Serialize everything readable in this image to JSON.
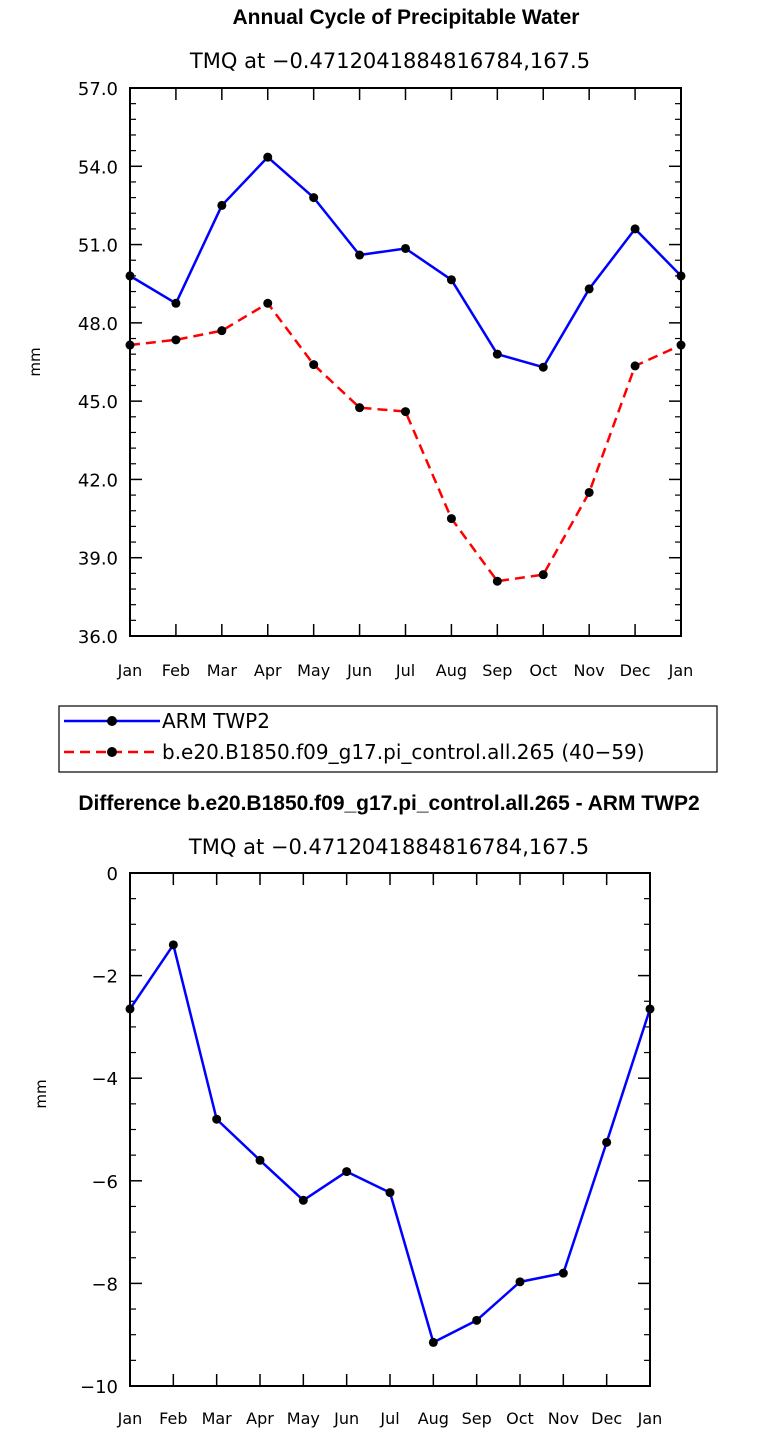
{
  "chart_data": [
    {
      "type": "line",
      "title": "Annual Cycle of Precipitable Water",
      "subtitle": "TMQ at −0.4712041884816784,167.5",
      "xlabel": "",
      "ylabel": "mm",
      "categories": [
        "Jan",
        "Feb",
        "Mar",
        "Apr",
        "May",
        "Jun",
        "Jul",
        "Aug",
        "Sep",
        "Oct",
        "Nov",
        "Dec",
        "Jan"
      ],
      "ylim": [
        36.0,
        57.0
      ],
      "yticks": [
        36.0,
        39.0,
        42.0,
        45.0,
        48.0,
        51.0,
        54.0,
        57.0
      ],
      "ytick_labels": [
        "36.0",
        "39.0",
        "42.0",
        "45.0",
        "48.0",
        "51.0",
        "54.0",
        "57.0"
      ],
      "grid": false,
      "legend_position": "below plot",
      "series": [
        {
          "name": "ARM TWP2",
          "color": "#0000ff",
          "dash": "solid",
          "values": [
            49.8,
            48.75,
            52.5,
            54.35,
            52.8,
            50.6,
            50.85,
            49.65,
            46.8,
            46.3,
            49.3,
            51.6,
            49.8
          ]
        },
        {
          "name": "b.e20.B1850.f09_g17.pi_control.all.265 (40−59)",
          "color": "#ff0000",
          "dash": "dashed",
          "values": [
            47.15,
            47.35,
            47.7,
            48.75,
            46.4,
            44.75,
            44.6,
            40.5,
            38.1,
            38.35,
            41.5,
            46.35,
            47.15
          ]
        }
      ]
    },
    {
      "type": "line",
      "title": "Difference b.e20.B1850.f09_g17.pi_control.all.265 - ARM TWP2",
      "subtitle": "TMQ at −0.4712041884816784,167.5",
      "xlabel": "",
      "ylabel": "mm",
      "categories": [
        "Jan",
        "Feb",
        "Mar",
        "Apr",
        "May",
        "Jun",
        "Jul",
        "Aug",
        "Sep",
        "Oct",
        "Nov",
        "Dec",
        "Jan"
      ],
      "ylim": [
        -10,
        0
      ],
      "yticks": [
        -10,
        -8,
        -6,
        -4,
        -2,
        0
      ],
      "ytick_labels": [
        "−10",
        "−8",
        "−6",
        "−4",
        "−2",
        "0"
      ],
      "grid": false,
      "series": [
        {
          "color": "#0000ff",
          "dash": "solid",
          "values": [
            -2.65,
            -1.4,
            -4.8,
            -5.6,
            -6.38,
            -5.82,
            -6.23,
            -9.15,
            -8.72,
            -7.97,
            -7.8,
            -5.25,
            -2.65
          ]
        }
      ]
    }
  ]
}
